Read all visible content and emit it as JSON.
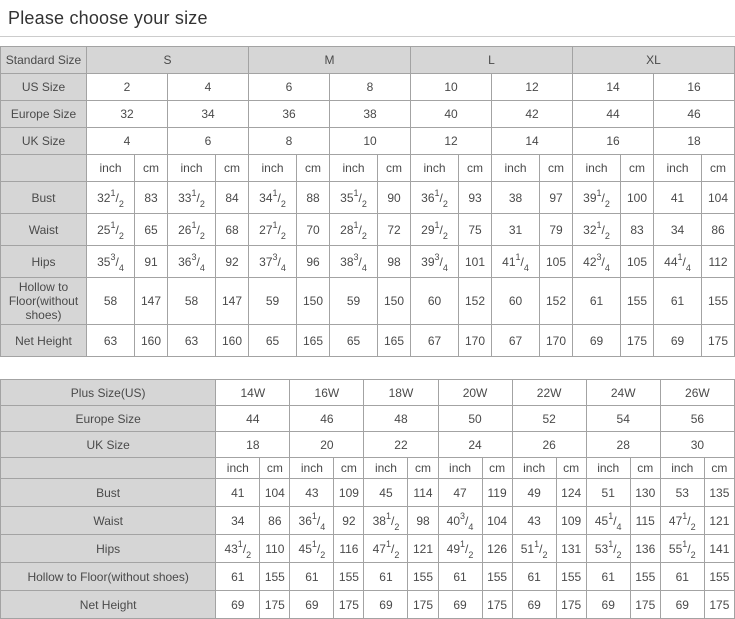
{
  "page": {
    "title": "Please choose your size"
  },
  "colors": {
    "header_bg": "#d6d6d6",
    "border": "#a3a3a3",
    "text": "#4a4a4a",
    "title": "#333333",
    "divider": "#cccccc"
  },
  "unit_labels": [
    "inch",
    "cm"
  ],
  "tables": [
    {
      "name": "standard-size-table",
      "pairs": 8,
      "group_row": {
        "label": "Standard Size",
        "group_span": 4,
        "groups": [
          "S",
          "M",
          "L",
          "XL"
        ]
      },
      "size_rows": [
        {
          "label": "US Size",
          "values": [
            "2",
            "4",
            "6",
            "8",
            "10",
            "12",
            "14",
            "16"
          ]
        },
        {
          "label": "Europe Size",
          "values": [
            "32",
            "34",
            "36",
            "38",
            "40",
            "42",
            "44",
            "46"
          ]
        },
        {
          "label": "UK Size",
          "values": [
            "4",
            "6",
            "8",
            "10",
            "12",
            "14",
            "16",
            "18"
          ]
        }
      ],
      "measure_rows": [
        {
          "label": "Bust",
          "values": [
            "32 1/2",
            "83",
            "33 1/2",
            "84",
            "34 1/2",
            "88",
            "35 1/2",
            "90",
            "36 1/2",
            "93",
            "38",
            "97",
            "39 1/2",
            "100",
            "41",
            "104"
          ]
        },
        {
          "label": "Waist",
          "values": [
            "25 1/2",
            "65",
            "26 1/2",
            "68",
            "27 1/2",
            "70",
            "28 1/2",
            "72",
            "29 1/2",
            "75",
            "31",
            "79",
            "32 1/2",
            "83",
            "34",
            "86"
          ]
        },
        {
          "label": "Hips",
          "values": [
            "35 3/4",
            "91",
            "36 3/4",
            "92",
            "37 3/4",
            "96",
            "38 3/4",
            "98",
            "39 3/4",
            "101",
            "41 1/4",
            "105",
            "42 3/4",
            "105",
            "44 1/4",
            "112"
          ]
        },
        {
          "label": "Hollow to Floor(without shoes)",
          "values": [
            "58",
            "147",
            "58",
            "147",
            "59",
            "150",
            "59",
            "150",
            "60",
            "152",
            "60",
            "152",
            "61",
            "155",
            "61",
            "155"
          ]
        },
        {
          "label": "Net Height",
          "values": [
            "63",
            "160",
            "63",
            "160",
            "65",
            "165",
            "65",
            "165",
            "67",
            "170",
            "67",
            "170",
            "69",
            "175",
            "69",
            "175"
          ]
        }
      ]
    },
    {
      "name": "plus-size-table",
      "pairs": 7,
      "group_row": {
        "label": "Plus Size(US)",
        "group_span": 2,
        "groups": [
          "14W",
          "16W",
          "18W",
          "20W",
          "22W",
          "24W",
          "26W"
        ]
      },
      "size_rows": [
        {
          "label": "Europe Size",
          "values": [
            "44",
            "46",
            "48",
            "50",
            "52",
            "54",
            "56"
          ]
        },
        {
          "label": "UK Size",
          "values": [
            "18",
            "20",
            "22",
            "24",
            "26",
            "28",
            "30"
          ]
        }
      ],
      "measure_rows": [
        {
          "label": "Bust",
          "values": [
            "41",
            "104",
            "43",
            "109",
            "45",
            "114",
            "47",
            "119",
            "49",
            "124",
            "51",
            "130",
            "53",
            "135"
          ]
        },
        {
          "label": "Waist",
          "values": [
            "34",
            "86",
            "36 1/4",
            "92",
            "38 1/2",
            "98",
            "40 3/4",
            "104",
            "43",
            "109",
            "45 1/4",
            "115",
            "47 1/2",
            "121"
          ]
        },
        {
          "label": "Hips",
          "values": [
            "43 1/2",
            "110",
            "45 1/2",
            "116",
            "47 1/2",
            "121",
            "49 1/2",
            "126",
            "51 1/2",
            "131",
            "53 1/2",
            "136",
            "55 1/2",
            "141"
          ]
        },
        {
          "label": "Hollow to Floor(without shoes)",
          "values": [
            "61",
            "155",
            "61",
            "155",
            "61",
            "155",
            "61",
            "155",
            "61",
            "155",
            "61",
            "155",
            "61",
            "155"
          ]
        },
        {
          "label": "Net Height",
          "values": [
            "69",
            "175",
            "69",
            "175",
            "69",
            "175",
            "69",
            "175",
            "69",
            "175",
            "69",
            "175",
            "69",
            "175"
          ]
        }
      ]
    }
  ]
}
